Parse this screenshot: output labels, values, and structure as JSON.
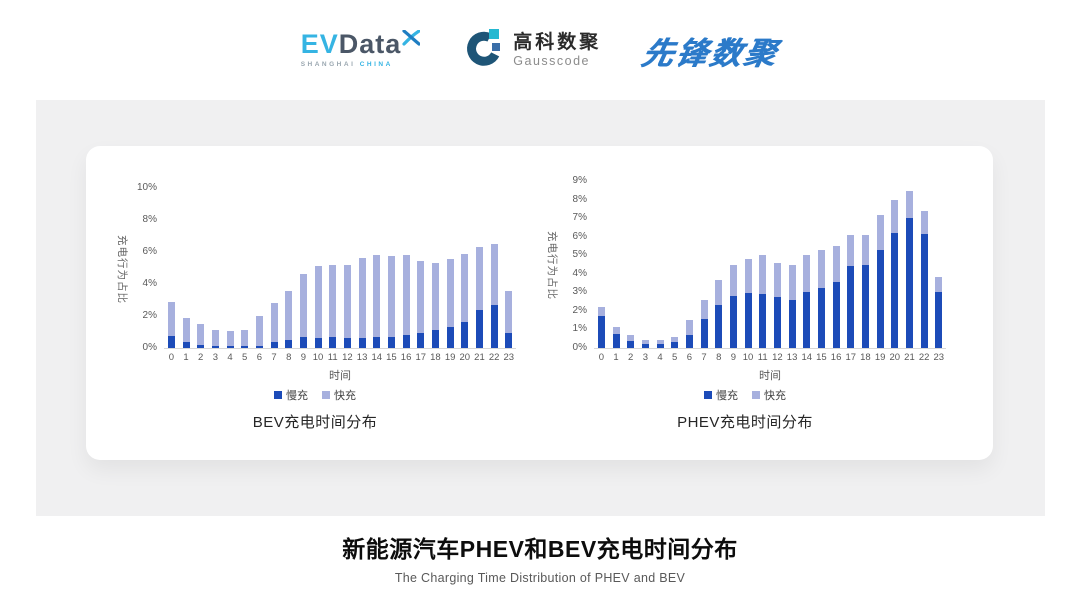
{
  "header": {
    "evdata": {
      "ev": "EV",
      "data": "Data",
      "tagline_left": "SHANGHAI",
      "tagline_right": "CHINA"
    },
    "gausscode": {
      "name_cn": "高科数聚",
      "name_en": "Gausscode"
    },
    "pioneer": {
      "text": "先锋数聚"
    }
  },
  "footer": {
    "title": "新能源汽车PHEV和BEV充电时间分布",
    "subtitle": "The Charging Time Distribution of PHEV and BEV"
  },
  "colors": {
    "slow": "#1c4bb8",
    "fast": "#a7b0de",
    "evdata_cyan": "#35b4e3",
    "evdata_dark": "#4b5767",
    "gauss_navy": "#1e5577",
    "gauss_cyan": "#24b8d1",
    "gauss_blue": "#3a6ea8",
    "pioneer_blue": "#2b7ac9"
  },
  "chart_data": [
    {
      "type": "bar",
      "stacked": true,
      "title": "BEV充电时间分布",
      "xlabel": "时间",
      "ylabel": "充电行为占比",
      "categories": [
        "0",
        "1",
        "2",
        "3",
        "4",
        "5",
        "6",
        "7",
        "8",
        "9",
        "10",
        "11",
        "12",
        "13",
        "14",
        "15",
        "16",
        "17",
        "18",
        "19",
        "20",
        "21",
        "22",
        "23"
      ],
      "series": [
        {
          "name": "慢充",
          "color_key": "slow",
          "values": [
            0.75,
            0.35,
            0.2,
            0.1,
            0.1,
            0.1,
            0.15,
            0.35,
            0.5,
            0.7,
            0.65,
            0.7,
            0.6,
            0.65,
            0.7,
            0.7,
            0.8,
            0.95,
            1.1,
            1.3,
            1.6,
            2.35,
            2.7,
            0.95
          ]
        },
        {
          "name": "快充",
          "color_key": "fast",
          "values": [
            2.1,
            1.55,
            1.3,
            1.05,
            0.95,
            1.05,
            1.85,
            2.45,
            3.05,
            3.9,
            4.5,
            4.5,
            4.6,
            4.95,
            5.1,
            5.05,
            5.0,
            4.5,
            4.2,
            4.25,
            4.3,
            3.95,
            3.8,
            2.6
          ]
        }
      ],
      "ylim": [
        0,
        10
      ],
      "ytick_step": 2,
      "ytick_suffix": "%",
      "grid": false,
      "legend_position": "bottom"
    },
    {
      "type": "bar",
      "stacked": true,
      "title": "PHEV充电时间分布",
      "xlabel": "时间",
      "ylabel": "充电行为占比",
      "categories": [
        "0",
        "1",
        "2",
        "3",
        "4",
        "5",
        "6",
        "7",
        "8",
        "9",
        "10",
        "11",
        "12",
        "13",
        "14",
        "15",
        "16",
        "17",
        "18",
        "19",
        "20",
        "21",
        "22",
        "23"
      ],
      "series": [
        {
          "name": "慢充",
          "color_key": "slow",
          "values": [
            1.7,
            0.75,
            0.4,
            0.2,
            0.2,
            0.3,
            0.7,
            1.55,
            2.3,
            2.8,
            2.95,
            2.9,
            2.75,
            2.6,
            3.0,
            3.25,
            3.55,
            4.4,
            4.5,
            5.3,
            6.2,
            7.0,
            6.15,
            3.0
          ]
        },
        {
          "name": "快充",
          "color_key": "fast",
          "values": [
            0.5,
            0.4,
            0.3,
            0.25,
            0.25,
            0.3,
            0.8,
            1.05,
            1.35,
            1.7,
            1.85,
            2.1,
            1.85,
            1.9,
            2.0,
            2.05,
            1.95,
            1.7,
            1.6,
            1.85,
            1.8,
            1.45,
            1.25,
            0.85
          ]
        }
      ],
      "ylim": [
        0,
        9
      ],
      "ytick_step": 1,
      "ytick_suffix": "%",
      "grid": false,
      "legend_position": "bottom"
    }
  ]
}
